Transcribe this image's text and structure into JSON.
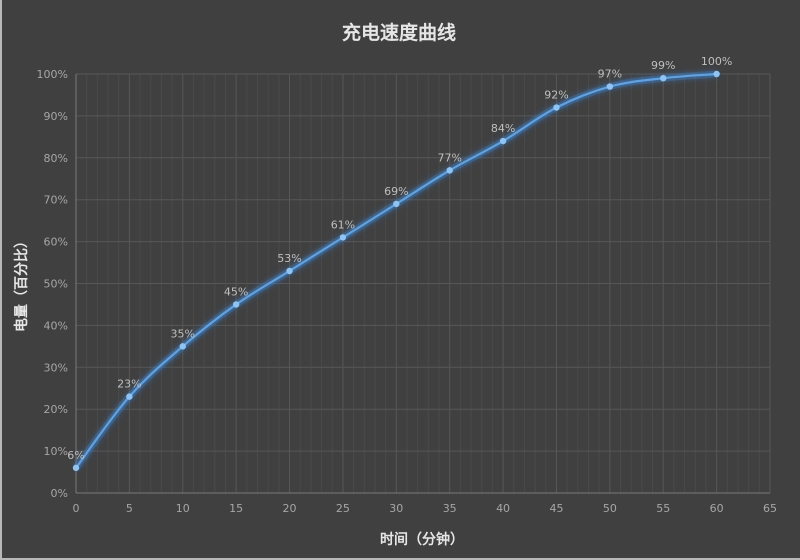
{
  "chart_data": {
    "type": "line",
    "title": "充电速度曲线",
    "xlabel": "时间（分钟）",
    "ylabel": "电量（百分比）",
    "x": [
      0,
      5,
      10,
      15,
      20,
      25,
      30,
      35,
      40,
      45,
      50,
      55,
      60
    ],
    "series": [
      {
        "name": "电量",
        "values": [
          6,
          23,
          35,
          45,
          53,
          61,
          69,
          77,
          84,
          92,
          97,
          99,
          100
        ],
        "labels": [
          "6%",
          "23%",
          "35%",
          "45%",
          "53%",
          "61%",
          "69%",
          "77%",
          "84%",
          "92%",
          "97%",
          "99%",
          "100%"
        ],
        "color": "#5ba3e8",
        "smooth": true,
        "markers": true
      }
    ],
    "xlim": [
      0,
      65
    ],
    "ylim": [
      0,
      100
    ],
    "x_ticks": [
      "0",
      "5",
      "10",
      "15",
      "20",
      "25",
      "30",
      "35",
      "40",
      "45",
      "50",
      "55",
      "60",
      "65"
    ],
    "y_ticks": [
      "0%",
      "10%",
      "20%",
      "30%",
      "40%",
      "50%",
      "60%",
      "70%",
      "80%",
      "90%",
      "100%"
    ],
    "grid": {
      "major": true,
      "minor_x": true
    },
    "legend": null,
    "background": "#404040"
  }
}
